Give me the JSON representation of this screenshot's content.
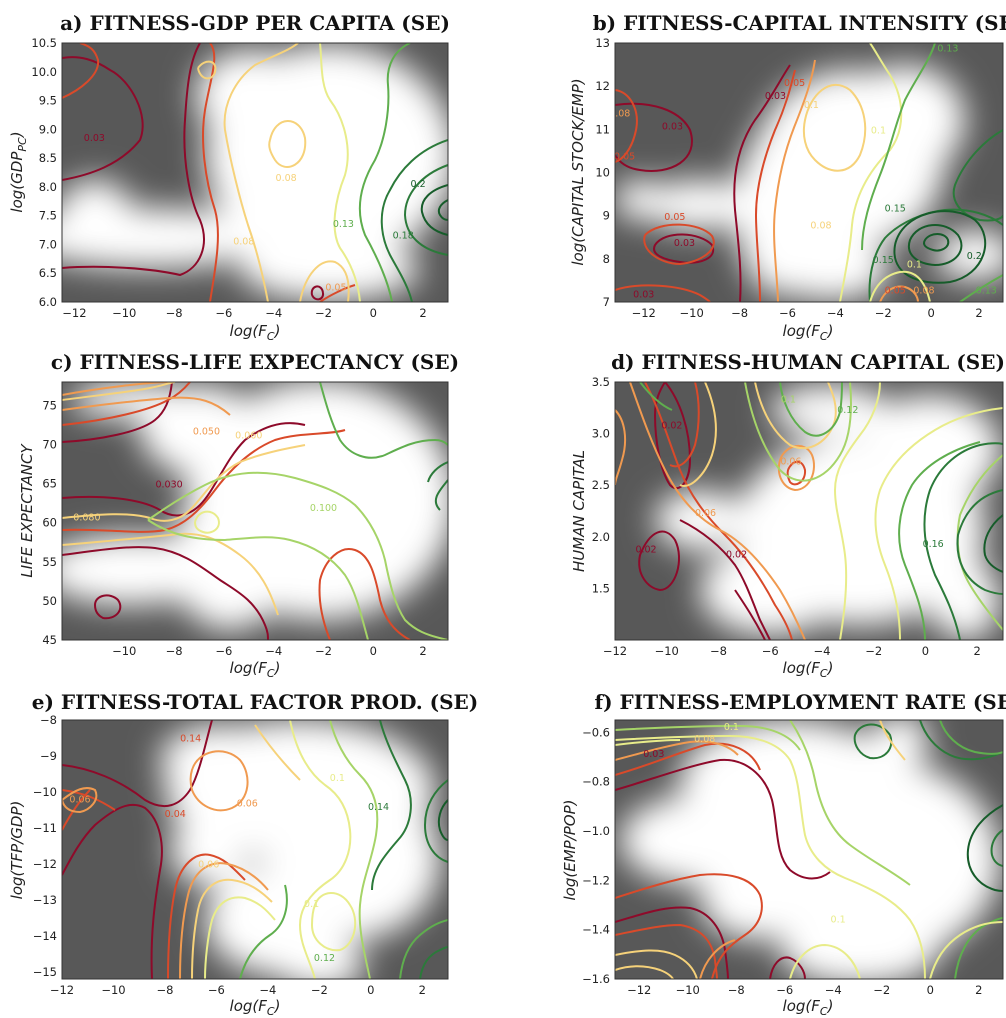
{
  "colors": {
    "background": "#585858",
    "highlight": "#ffffff",
    "levels": [
      "#8e0a2a",
      "#d94a2a",
      "#f09a50",
      "#f6d27a",
      "#e8ec8a",
      "#a6d468",
      "#5fae4e",
      "#2b7a3a",
      "#165c2a"
    ]
  },
  "chart_data": [
    {
      "id": "a",
      "type": "contour",
      "title": "a) FITNESS-GDP PER CAPITA (SE)",
      "xlabel": "log(F_C)",
      "ylabel": "log(GDP_PC)",
      "xlim": [
        -12.5,
        3
      ],
      "ylim": [
        6.0,
        10.5
      ],
      "xticks": [
        "−12",
        "−10",
        "−8",
        "−6",
        "−4",
        "−2",
        "0",
        "2"
      ],
      "xtick_values": [
        -12,
        -10,
        -8,
        -6,
        -4,
        -2,
        0,
        2
      ],
      "yticks": [
        "6.0",
        "6.5",
        "7.0",
        "7.5",
        "8.0",
        "8.5",
        "9.0",
        "9.5",
        "10.0",
        "10.5"
      ],
      "ytick_values": [
        6.0,
        6.5,
        7.0,
        7.5,
        8.0,
        8.5,
        9.0,
        9.5,
        10.0,
        10.5
      ],
      "contour_labels": [
        {
          "text": "0.03",
          "x": -11.2,
          "y": 8.8,
          "level": 0
        },
        {
          "text": "0.08",
          "x": -3.5,
          "y": 8.1,
          "level": 3
        },
        {
          "text": "0.08",
          "x": -5.2,
          "y": 7.0,
          "level": 3
        },
        {
          "text": "0.13",
          "x": -1.2,
          "y": 7.3,
          "level": 6
        },
        {
          "text": "0.18",
          "x": 1.2,
          "y": 7.1,
          "level": 7
        },
        {
          "text": "0.2",
          "x": 1.8,
          "y": 8.0,
          "level": 8
        },
        {
          "text": "0.05",
          "x": -1.5,
          "y": 6.2,
          "level": 2
        }
      ]
    },
    {
      "id": "b",
      "type": "contour",
      "title": "b) FITNESS-CAPITAL INTENSITY (SE)",
      "xlabel": "log(F_C)",
      "ylabel": "log(CAPITAL STOCK/EMP)",
      "xlim": [
        -13.2,
        3
      ],
      "ylim": [
        7,
        13
      ],
      "xticks": [
        "−12",
        "−10",
        "−8",
        "−6",
        "−4",
        "−2",
        "0",
        "2"
      ],
      "xtick_values": [
        -12,
        -10,
        -8,
        -6,
        -4,
        -2,
        0,
        2
      ],
      "yticks": [
        "7",
        "8",
        "9",
        "10",
        "11",
        "12",
        "13"
      ],
      "ytick_values": [
        7,
        8,
        9,
        10,
        11,
        12,
        13
      ],
      "contour_labels": [
        {
          "text": "0.03",
          "x": -10.8,
          "y": 11.0,
          "level": 0
        },
        {
          "text": "0.08",
          "x": -13.0,
          "y": 11.3,
          "level": 2
        },
        {
          "text": "0.05",
          "x": -12.8,
          "y": 10.3,
          "level": 1
        },
        {
          "text": "0.05",
          "x": -10.7,
          "y": 8.9,
          "level": 1
        },
        {
          "text": "0.03",
          "x": -10.3,
          "y": 8.3,
          "level": 0
        },
        {
          "text": "0.1",
          "x": -5.0,
          "y": 11.5,
          "level": 3
        },
        {
          "text": "0.05",
          "x": -5.7,
          "y": 12.0,
          "level": 1
        },
        {
          "text": "0.03",
          "x": -6.5,
          "y": 11.7,
          "level": 0
        },
        {
          "text": "0.1",
          "x": -2.2,
          "y": 10.9,
          "level": 4
        },
        {
          "text": "0.13",
          "x": 0.7,
          "y": 12.8,
          "level": 6
        },
        {
          "text": "0.08",
          "x": -4.6,
          "y": 8.7,
          "level": 3
        },
        {
          "text": "0.15",
          "x": -1.5,
          "y": 9.1,
          "level": 7
        },
        {
          "text": "0.15",
          "x": -2.0,
          "y": 7.9,
          "level": 7
        },
        {
          "text": "0.1",
          "x": -0.7,
          "y": 7.8,
          "level": 4
        },
        {
          "text": "0.2",
          "x": 1.8,
          "y": 8.0,
          "level": 8
        },
        {
          "text": "0.05",
          "x": -1.5,
          "y": 7.2,
          "level": 1
        },
        {
          "text": "0.08",
          "x": -0.3,
          "y": 7.2,
          "level": 2
        },
        {
          "text": "0.13",
          "x": 2.3,
          "y": 7.2,
          "level": 6
        },
        {
          "text": "0.03",
          "x": -12.0,
          "y": 7.1,
          "level": 0
        }
      ]
    },
    {
      "id": "c",
      "type": "contour",
      "title": "c) FITNESS-LIFE EXPECTANCY (SE)",
      "xlabel": "log(F_C)",
      "ylabel": "LIFE EXPECTANCY",
      "xlim": [
        -12.5,
        3
      ],
      "ylim": [
        45,
        78
      ],
      "xticks": [
        "−10",
        "−8",
        "−6",
        "−4",
        "−2",
        "0",
        "2"
      ],
      "xtick_values": [
        -10,
        -8,
        -6,
        -4,
        -2,
        0,
        2
      ],
      "yticks": [
        "45",
        "50",
        "55",
        "60",
        "65",
        "70",
        "75"
      ],
      "ytick_values": [
        45,
        50,
        55,
        60,
        65,
        70,
        75
      ],
      "contour_labels": [
        {
          "text": "0.050",
          "x": -6.7,
          "y": 71.3,
          "level": 2
        },
        {
          "text": "0.060",
          "x": -5.0,
          "y": 70.8,
          "level": 3
        },
        {
          "text": "0.030",
          "x": -8.2,
          "y": 64.5,
          "level": 0
        },
        {
          "text": "0.080",
          "x": -11.5,
          "y": 60.3,
          "level": 3
        },
        {
          "text": "0.100",
          "x": -2.0,
          "y": 61.5,
          "level": 5
        }
      ]
    },
    {
      "id": "d",
      "type": "contour",
      "title": "d) FITNESS-HUMAN CAPITAL (SE)",
      "xlabel": "log(F_C)",
      "ylabel": "HUMAN CAPITAL",
      "xlim": [
        -12,
        3
      ],
      "ylim": [
        1.0,
        3.5
      ],
      "xticks": [
        "−12",
        "−10",
        "−8",
        "−6",
        "−4",
        "−2",
        "0",
        "2"
      ],
      "xtick_values": [
        -12,
        -10,
        -8,
        -6,
        -4,
        -2,
        0,
        2
      ],
      "yticks": [
        "1.5",
        "2.0",
        "2.5",
        "3.0",
        "3.5"
      ],
      "ytick_values": [
        1.5,
        2.0,
        2.5,
        3.0,
        3.5
      ],
      "contour_labels": [
        {
          "text": "0.02",
          "x": -9.8,
          "y": 3.05,
          "level": 0
        },
        {
          "text": "0.1",
          "x": -5.3,
          "y": 3.3,
          "level": 5
        },
        {
          "text": "0.12",
          "x": -3.0,
          "y": 3.2,
          "level": 6
        },
        {
          "text": "0.06",
          "x": -5.2,
          "y": 2.7,
          "level": 2
        },
        {
          "text": "0.06",
          "x": -8.5,
          "y": 2.2,
          "level": 2
        },
        {
          "text": "0.02",
          "x": -10.8,
          "y": 1.85,
          "level": 0
        },
        {
          "text": "0.02",
          "x": -7.3,
          "y": 1.8,
          "level": 0
        },
        {
          "text": "0.16",
          "x": 0.3,
          "y": 1.9,
          "level": 7
        }
      ]
    },
    {
      "id": "e",
      "type": "contour",
      "title": "e) FITNESS-TOTAL FACTOR PROD. (SE)",
      "xlabel": "log(F_C)",
      "ylabel": "log(TFP/GDP)",
      "xlim": [
        -12,
        3
      ],
      "ylim": [
        -15.2,
        -8
      ],
      "xticks": [
        "−12",
        "−10",
        "−8",
        "−6",
        "−4",
        "−2",
        "0",
        "2"
      ],
      "xtick_values": [
        -12,
        -10,
        -8,
        -6,
        -4,
        -2,
        0,
        2
      ],
      "yticks": [
        "−15",
        "−14",
        "−13",
        "−12",
        "−11",
        "−10",
        "−9",
        "−8"
      ],
      "ytick_values": [
        -15,
        -14,
        -13,
        -12,
        -11,
        -10,
        -9,
        -8
      ],
      "contour_labels": [
        {
          "text": "0.14",
          "x": -7.0,
          "y": -8.6,
          "level": 1
        },
        {
          "text": "0.06",
          "x": -11.3,
          "y": -10.3,
          "level": 2
        },
        {
          "text": "0.04",
          "x": -7.6,
          "y": -10.7,
          "level": 1
        },
        {
          "text": "0.06",
          "x": -4.8,
          "y": -10.4,
          "level": 2
        },
        {
          "text": "0.1",
          "x": -1.3,
          "y": -9.7,
          "level": 4
        },
        {
          "text": "0.14",
          "x": 0.3,
          "y": -10.5,
          "level": 7
        },
        {
          "text": "0.06",
          "x": -6.3,
          "y": -12.1,
          "level": 3
        },
        {
          "text": "0.1",
          "x": -2.3,
          "y": -13.2,
          "level": 4
        },
        {
          "text": "0.12",
          "x": -1.8,
          "y": -14.7,
          "level": 6
        }
      ]
    },
    {
      "id": "f",
      "type": "contour",
      "title": "f) FITNESS-EMPLOYMENT RATE (SE)",
      "xlabel": "log(F_C)",
      "ylabel": "log(EMP/POP)",
      "xlim": [
        -13,
        3
      ],
      "ylim": [
        -1.6,
        -0.55
      ],
      "xticks": [
        "−12",
        "−10",
        "−8",
        "−6",
        "−4",
        "−2",
        "0",
        "2"
      ],
      "xtick_values": [
        -12,
        -10,
        -8,
        -6,
        -4,
        -2,
        0,
        2
      ],
      "yticks": [
        "−1.6",
        "−1.4",
        "−1.2",
        "−1.0",
        "−0.8",
        "−0.6"
      ],
      "ytick_values": [
        -1.6,
        -1.4,
        -1.2,
        -1.0,
        -0.8,
        -0.6
      ],
      "contour_labels": [
        {
          "text": "0.1",
          "x": -8.2,
          "y": -0.59,
          "level": 4
        },
        {
          "text": "0.08",
          "x": -9.3,
          "y": -0.64,
          "level": 3
        },
        {
          "text": "0.03",
          "x": -11.4,
          "y": -0.7,
          "level": 0
        },
        {
          "text": "0.1",
          "x": -3.8,
          "y": -1.37,
          "level": 4
        }
      ]
    }
  ]
}
